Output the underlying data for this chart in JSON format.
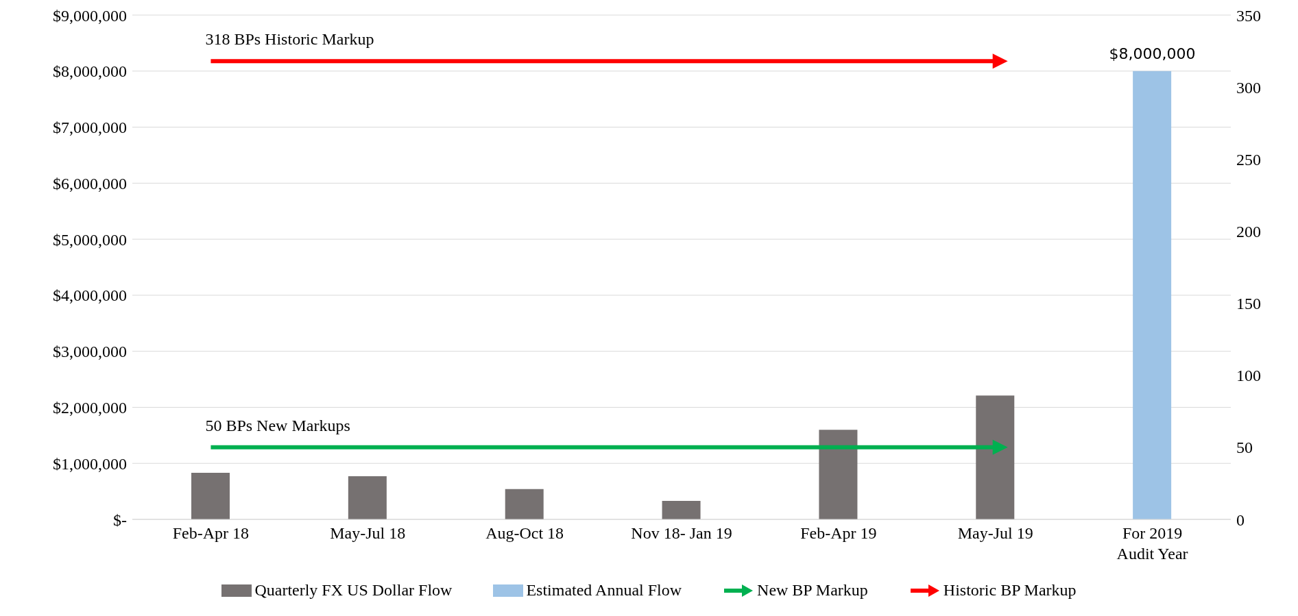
{
  "chart_data": {
    "type": "bar",
    "stacked": true,
    "categories": [
      "Feb-Apr 18",
      "May-Jul 18",
      "Aug-Oct 18",
      "Nov 18- Jan 19",
      "Feb-Apr 19",
      "May-Jul 19",
      "For 2019 Audit Year"
    ],
    "series": [
      {
        "name": "Quarterly FX US Dollar Flow",
        "color": "#767171",
        "values": [
          830000,
          770000,
          540000,
          330000,
          1600000,
          2210000,
          null
        ]
      },
      {
        "name": "Estimated Annual Flow",
        "color": "#9dc3e6",
        "values": [
          null,
          null,
          null,
          null,
          null,
          null,
          8000000
        ],
        "value_labels": [
          null,
          null,
          null,
          null,
          null,
          null,
          "$8,000,000"
        ]
      },
      {
        "name": "New BP Markup",
        "type": "line",
        "axis": "y2",
        "color": "#00b050",
        "values": [
          50,
          50,
          50,
          50,
          50,
          50,
          null
        ]
      },
      {
        "name": "Historic BP Markup",
        "type": "line",
        "axis": "y2",
        "color": "#ff0000",
        "values": [
          318,
          318,
          318,
          318,
          318,
          318,
          null
        ]
      }
    ],
    "ylim": [
      0,
      9000000
    ],
    "yticks": [
      {
        "value": 0,
        "label": "$-"
      },
      {
        "value": 1000000,
        "label": "$1,000,000"
      },
      {
        "value": 2000000,
        "label": "$2,000,000"
      },
      {
        "value": 3000000,
        "label": "$3,000,000"
      },
      {
        "value": 4000000,
        "label": "$4,000,000"
      },
      {
        "value": 5000000,
        "label": "$5,000,000"
      },
      {
        "value": 6000000,
        "label": "$6,000,000"
      },
      {
        "value": 7000000,
        "label": "$7,000,000"
      },
      {
        "value": 8000000,
        "label": "$8,000,000"
      },
      {
        "value": 9000000,
        "label": "$9,000,000"
      }
    ],
    "y2lim": [
      0,
      350
    ],
    "y2ticks": [
      0,
      50,
      100,
      150,
      200,
      250,
      300,
      350
    ],
    "annotations": [
      "318 BPs Historic Markup",
      "50 BPs New Markups"
    ],
    "grid": "y",
    "legend": "bottom",
    "marker": "none",
    "line_style": "solid"
  }
}
